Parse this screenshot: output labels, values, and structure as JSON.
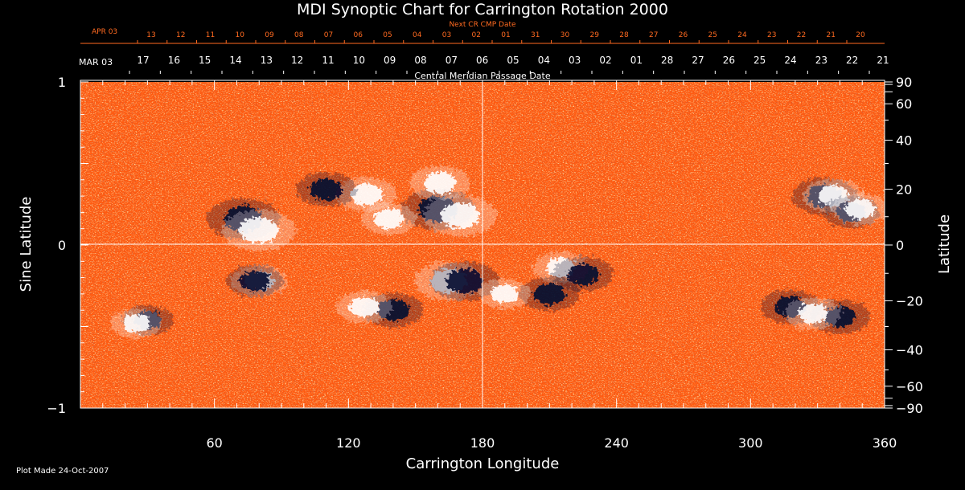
{
  "chart_data": {
    "type": "heatmap",
    "title": "MDI Synoptic Chart for Carrington Rotation 2000",
    "xlabel": "Carrington Longitude",
    "ylabel_left": "Sine Latitude",
    "ylabel_right": "Latitude",
    "xlim": [
      0,
      360
    ],
    "ylim": [
      -1,
      1
    ],
    "x_ticks": [
      60,
      120,
      180,
      240,
      300,
      360
    ],
    "y_ticks_left": [
      {
        "value": 1,
        "label": "1"
      },
      {
        "value": 0,
        "label": "0"
      },
      {
        "value": -1,
        "label": "−1"
      }
    ],
    "y_ticks_right_deg": [
      {
        "deg": 90,
        "label": "90"
      },
      {
        "deg": 60,
        "label": "60"
      },
      {
        "deg": 40,
        "label": "40"
      },
      {
        "deg": 20,
        "label": "20"
      },
      {
        "deg": 0,
        "label": "0"
      },
      {
        "deg": -20,
        "label": "−20"
      },
      {
        "deg": -40,
        "label": "−40"
      },
      {
        "deg": -60,
        "label": "−60"
      },
      {
        "deg": -90,
        "label": "−90"
      }
    ],
    "cmp_axis": {
      "label": "Central Meridian Passage Date",
      "start_label": "MAR 03",
      "day_labels": [
        "17",
        "16",
        "15",
        "14",
        "13",
        "12",
        "11",
        "10",
        "09",
        "08",
        "07",
        "06",
        "05",
        "04",
        "03",
        "02",
        "01",
        "28",
        "27",
        "26",
        "25",
        "24",
        "23",
        "22",
        "21"
      ]
    },
    "next_cmp_axis": {
      "label": "Next CR CMP Date",
      "start_label": "APR 03",
      "day_labels": [
        "13",
        "12",
        "11",
        "10",
        "09",
        "08",
        "07",
        "06",
        "05",
        "04",
        "03",
        "02",
        "01",
        "31",
        "30",
        "29",
        "28",
        "27",
        "26",
        "25",
        "24",
        "23",
        "22",
        "21",
        "20"
      ]
    },
    "colors": {
      "background": "#000000",
      "map_base": "#ff5a10",
      "positive_polarity": "#ffffff",
      "negative_polarity": "#050a30",
      "next_axis_text": "#ff6a20"
    },
    "features": [
      {
        "lon": 73,
        "sinlat": 0.16,
        "polarity": "negative",
        "strength": 1.0
      },
      {
        "lon": 80,
        "sinlat": 0.09,
        "polarity": "positive",
        "strength": 1.0
      },
      {
        "lon": 160,
        "sinlat": 0.22,
        "polarity": "negative",
        "strength": 1.0
      },
      {
        "lon": 170,
        "sinlat": 0.18,
        "polarity": "positive",
        "strength": 1.0
      },
      {
        "lon": 161,
        "sinlat": 0.38,
        "polarity": "positive",
        "strength": 0.7
      },
      {
        "lon": 128,
        "sinlat": 0.31,
        "polarity": "positive",
        "strength": 0.7
      },
      {
        "lon": 110,
        "sinlat": 0.34,
        "polarity": "negative",
        "strength": 0.7
      },
      {
        "lon": 138,
        "sinlat": 0.16,
        "polarity": "positive",
        "strength": 0.6
      },
      {
        "lon": 333,
        "sinlat": 0.3,
        "polarity": "negative",
        "strength": 0.8
      },
      {
        "lon": 337,
        "sinlat": 0.3,
        "polarity": "positive",
        "strength": 0.7
      },
      {
        "lon": 345,
        "sinlat": 0.2,
        "polarity": "negative",
        "strength": 0.6
      },
      {
        "lon": 349,
        "sinlat": 0.22,
        "polarity": "positive",
        "strength": 0.6
      },
      {
        "lon": 80,
        "sinlat": -0.22,
        "polarity": "positive",
        "strength": 0.6
      },
      {
        "lon": 78,
        "sinlat": -0.22,
        "polarity": "negative",
        "strength": 0.6
      },
      {
        "lon": 165,
        "sinlat": -0.22,
        "polarity": "positive",
        "strength": 0.9
      },
      {
        "lon": 172,
        "sinlat": -0.22,
        "polarity": "negative",
        "strength": 0.9
      },
      {
        "lon": 140,
        "sinlat": -0.4,
        "polarity": "negative",
        "strength": 0.7
      },
      {
        "lon": 127,
        "sinlat": -0.38,
        "polarity": "positive",
        "strength": 0.6
      },
      {
        "lon": 215,
        "sinlat": -0.14,
        "polarity": "positive",
        "strength": 0.6
      },
      {
        "lon": 225,
        "sinlat": -0.18,
        "polarity": "negative",
        "strength": 0.7
      },
      {
        "lon": 210,
        "sinlat": -0.3,
        "polarity": "negative",
        "strength": 0.7
      },
      {
        "lon": 318,
        "sinlat": -0.38,
        "polarity": "negative",
        "strength": 0.7
      },
      {
        "lon": 340,
        "sinlat": -0.44,
        "polarity": "negative",
        "strength": 0.7
      },
      {
        "lon": 328,
        "sinlat": -0.42,
        "polarity": "positive",
        "strength": 0.6
      },
      {
        "lon": 30,
        "sinlat": -0.46,
        "polarity": "negative",
        "strength": 0.5
      },
      {
        "lon": 25,
        "sinlat": -0.48,
        "polarity": "positive",
        "strength": 0.5
      },
      {
        "lon": 190,
        "sinlat": -0.3,
        "polarity": "positive",
        "strength": 0.5
      }
    ]
  },
  "footer": {
    "plot_made": "Plot Made 24-Oct-2007"
  }
}
